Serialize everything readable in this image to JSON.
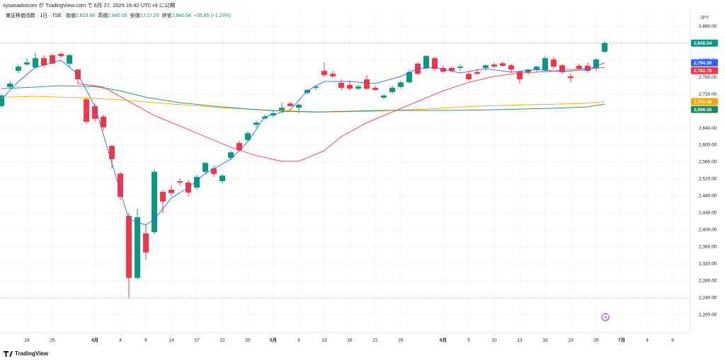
{
  "header": {
    "published": "sysanadotcom が TradingView.com で 6月 27, 2025 16:42 UTC+9 に公開"
  },
  "chart_data": {
    "type": "candlestick",
    "title": "東証株価指数 · 1日 · TSE",
    "ohlc_names": [
      "始値",
      "高値",
      "安値",
      "終値"
    ],
    "ohlc_value_labels": [
      "2,819.88",
      "2,845.08",
      "2,817.29",
      "2,840.54"
    ],
    "change_label": "+35.85 (+1.28%)",
    "currency": "JPY",
    "up_color": "#089981",
    "down_color": "#f23645",
    "grid": true,
    "ylim": [
      2158,
      2942
    ],
    "yticks": [
      {
        "value": 2200,
        "label": "2,200.00"
      },
      {
        "value": 2240,
        "label": "2,240.00"
      },
      {
        "value": 2280,
        "label": "2,280.00"
      },
      {
        "value": 2320,
        "label": "2,320.00"
      },
      {
        "value": 2360,
        "label": "2,360.00"
      },
      {
        "value": 2400,
        "label": "2,400.00"
      },
      {
        "value": 2440,
        "label": "2,440.00"
      },
      {
        "value": 2480,
        "label": "2,480.00"
      },
      {
        "value": 2520,
        "label": "2,520.00"
      },
      {
        "value": 2560,
        "label": "2,560.00"
      },
      {
        "value": 2600,
        "label": "2,600.00"
      },
      {
        "value": 2640,
        "label": "2,640.00"
      },
      {
        "value": 2680,
        "label": "2,680.00"
      },
      {
        "value": 2720,
        "label": "2,720.00"
      },
      {
        "value": 2760,
        "label": "2,760.00"
      },
      {
        "value": 2800,
        "label": "2,800.00"
      },
      {
        "value": 2840,
        "label": "2,840.00"
      },
      {
        "value": 2880,
        "label": "2,880.00"
      }
    ],
    "xlim": [
      -0.17,
      81.08
    ],
    "xticks": [
      {
        "value": 3,
        "label": "19"
      },
      {
        "value": 6,
        "label": "25"
      },
      {
        "value": 11,
        "label": "4月"
      },
      {
        "value": 14,
        "label": "4"
      },
      {
        "value": 17,
        "label": "9"
      },
      {
        "value": 20,
        "label": "14"
      },
      {
        "value": 23,
        "label": "17"
      },
      {
        "value": 26,
        "label": "22"
      },
      {
        "value": 29,
        "label": "25"
      },
      {
        "value": 32,
        "label": "5月"
      },
      {
        "value": 35,
        "label": "8"
      },
      {
        "value": 38,
        "label": "13"
      },
      {
        "value": 41,
        "label": "16"
      },
      {
        "value": 44,
        "label": "21"
      },
      {
        "value": 47,
        "label": "26"
      },
      {
        "value": 52,
        "label": "6月"
      },
      {
        "value": 55,
        "label": "5"
      },
      {
        "value": 58,
        "label": "10"
      },
      {
        "value": 61,
        "label": "13"
      },
      {
        "value": 64,
        "label": "18"
      },
      {
        "value": 67,
        "label": "23"
      },
      {
        "value": 70,
        "label": "26"
      },
      {
        "value": 73,
        "label": "7月"
      },
      {
        "value": 76,
        "label": "4"
      },
      {
        "value": 79,
        "label": "9"
      }
    ],
    "candles": {
      "open": [
        2692,
        2737,
        2775,
        2790,
        2783,
        2805,
        2812,
        2815,
        2792,
        2778,
        2708,
        2692,
        2667,
        2598,
        2533,
        2433,
        2287,
        2392,
        2395,
        2490,
        2495,
        2515,
        2512,
        2500,
        2537,
        2545,
        2515,
        2570,
        2605,
        2612,
        2648,
        2663,
        2670,
        2682,
        2698,
        2688,
        2723,
        2735,
        2775,
        2768,
        2747,
        2742,
        2733,
        2755,
        2735,
        2712,
        2725,
        2737,
        2748,
        2792,
        2782,
        2805,
        2782,
        2782,
        2782,
        2768,
        2772,
        2782,
        2790,
        2793,
        2788,
        2773,
        2772,
        2777,
        2777,
        2802,
        2788,
        2762,
        2787,
        2787,
        2782,
        2819.88
      ],
      "high": [
        2720,
        2750,
        2790,
        2805,
        2818,
        2812,
        2815,
        2818,
        2815,
        2780,
        2712,
        2698,
        2672,
        2600,
        2537,
        2440,
        2450,
        2410,
        2542,
        2495,
        2505,
        2522,
        2518,
        2530,
        2560,
        2552,
        2532,
        2587,
        2610,
        2632,
        2657,
        2672,
        2680,
        2700,
        2702,
        2698,
        2732,
        2742,
        2795,
        2775,
        2755,
        2752,
        2742,
        2765,
        2740,
        2720,
        2740,
        2752,
        2778,
        2795,
        2812,
        2808,
        2788,
        2786,
        2790,
        2775,
        2780,
        2790,
        2795,
        2797,
        2792,
        2775,
        2780,
        2787,
        2810,
        2808,
        2792,
        2768,
        2792,
        2795,
        2805,
        2845.08
      ],
      "low": [
        2688,
        2733,
        2770,
        2787,
        2780,
        2783,
        2790,
        2805,
        2785,
        2745,
        2650,
        2655,
        2635,
        2545,
        2470,
        2240,
        2283,
        2330,
        2390,
        2440,
        2480,
        2505,
        2480,
        2495,
        2532,
        2525,
        2510,
        2565,
        2585,
        2608,
        2642,
        2660,
        2665,
        2678,
        2690,
        2675,
        2720,
        2730,
        2760,
        2758,
        2730,
        2728,
        2730,
        2730,
        2728,
        2708,
        2720,
        2733,
        2745,
        2765,
        2778,
        2775,
        2770,
        2772,
        2775,
        2752,
        2765,
        2775,
        2782,
        2785,
        2770,
        2745,
        2765,
        2773,
        2772,
        2780,
        2768,
        2748,
        2778,
        2770,
        2775,
        2817.29
      ],
      "close": [
        2717,
        2745,
        2785,
        2795,
        2805,
        2788,
        2792,
        2810,
        2812,
        2755,
        2655,
        2662,
        2642,
        2567,
        2478,
        2287,
        2430,
        2347,
        2537,
        2467,
        2487,
        2512,
        2488,
        2525,
        2558,
        2532,
        2528,
        2583,
        2588,
        2628,
        2653,
        2667,
        2675,
        2688,
        2692,
        2695,
        2730,
        2738,
        2765,
        2762,
        2735,
        2733,
        2738,
        2733,
        2730,
        2717,
        2735,
        2748,
        2772,
        2768,
        2810,
        2780,
        2773,
        2775,
        2785,
        2755,
        2768,
        2788,
        2785,
        2787,
        2778,
        2755,
        2778,
        2785,
        2805,
        2785,
        2772,
        2758,
        2780,
        2775,
        2802,
        2840.54
      ],
      "last_label": "2,840.54"
    },
    "series": [
      {
        "color": "#2962ff",
        "x": [
          0,
          2,
          4,
          7,
          9,
          11,
          13,
          15,
          17,
          18,
          20,
          22,
          24,
          27,
          29,
          31,
          34,
          36,
          38,
          41,
          44,
          47,
          49,
          51,
          54,
          57,
          60,
          63,
          66,
          69,
          71
        ],
        "values": [
          2708,
          2750,
          2783,
          2800,
          2767,
          2692,
          2558,
          2425,
          2412,
          2425,
          2475,
          2500,
          2533,
          2567,
          2608,
          2667,
          2683,
          2728,
          2750,
          2750,
          2745,
          2762,
          2780,
          2783,
          2770,
          2780,
          2772,
          2778,
          2773,
          2778,
          2794.0
        ],
        "last_label": "2,794.00"
      },
      {
        "color": "#f23645",
        "x": [
          9,
          12,
          15,
          18,
          21,
          24,
          27,
          30,
          33,
          35,
          36,
          38,
          40,
          43,
          46,
          49,
          52,
          55,
          58,
          61,
          64,
          67,
          71
        ],
        "values": [
          2745,
          2737,
          2703,
          2670,
          2645,
          2620,
          2595,
          2575,
          2562,
          2562,
          2570,
          2587,
          2620,
          2653,
          2678,
          2703,
          2728,
          2748,
          2762,
          2770,
          2773,
          2778,
          2782.78
        ],
        "last_label": "2,782.78"
      },
      {
        "color": "#f7a600",
        "x": [
          0,
          4,
          9,
          14,
          20,
          26,
          32,
          38,
          44,
          50,
          56,
          62,
          68,
          71
        ],
        "values": [
          2713,
          2715,
          2712,
          2707,
          2697,
          2688,
          2682,
          2678,
          2680,
          2685,
          2692,
          2695,
          2698,
          2702.48
        ],
        "last_label": "2,702.48"
      },
      {
        "color": "#1b8a5a",
        "x": [
          0,
          4,
          7,
          11,
          14,
          17,
          21,
          25,
          29,
          33,
          37,
          41,
          45,
          49,
          53,
          57,
          61,
          65,
          69,
          71
        ],
        "values": [
          2733,
          2737,
          2740,
          2738,
          2728,
          2713,
          2700,
          2692,
          2685,
          2680,
          2678,
          2680,
          2682,
          2682,
          2682,
          2683,
          2685,
          2687,
          2690,
          2696.55
        ],
        "last_label": "2,696.55"
      }
    ]
  },
  "footer": "TradingView"
}
